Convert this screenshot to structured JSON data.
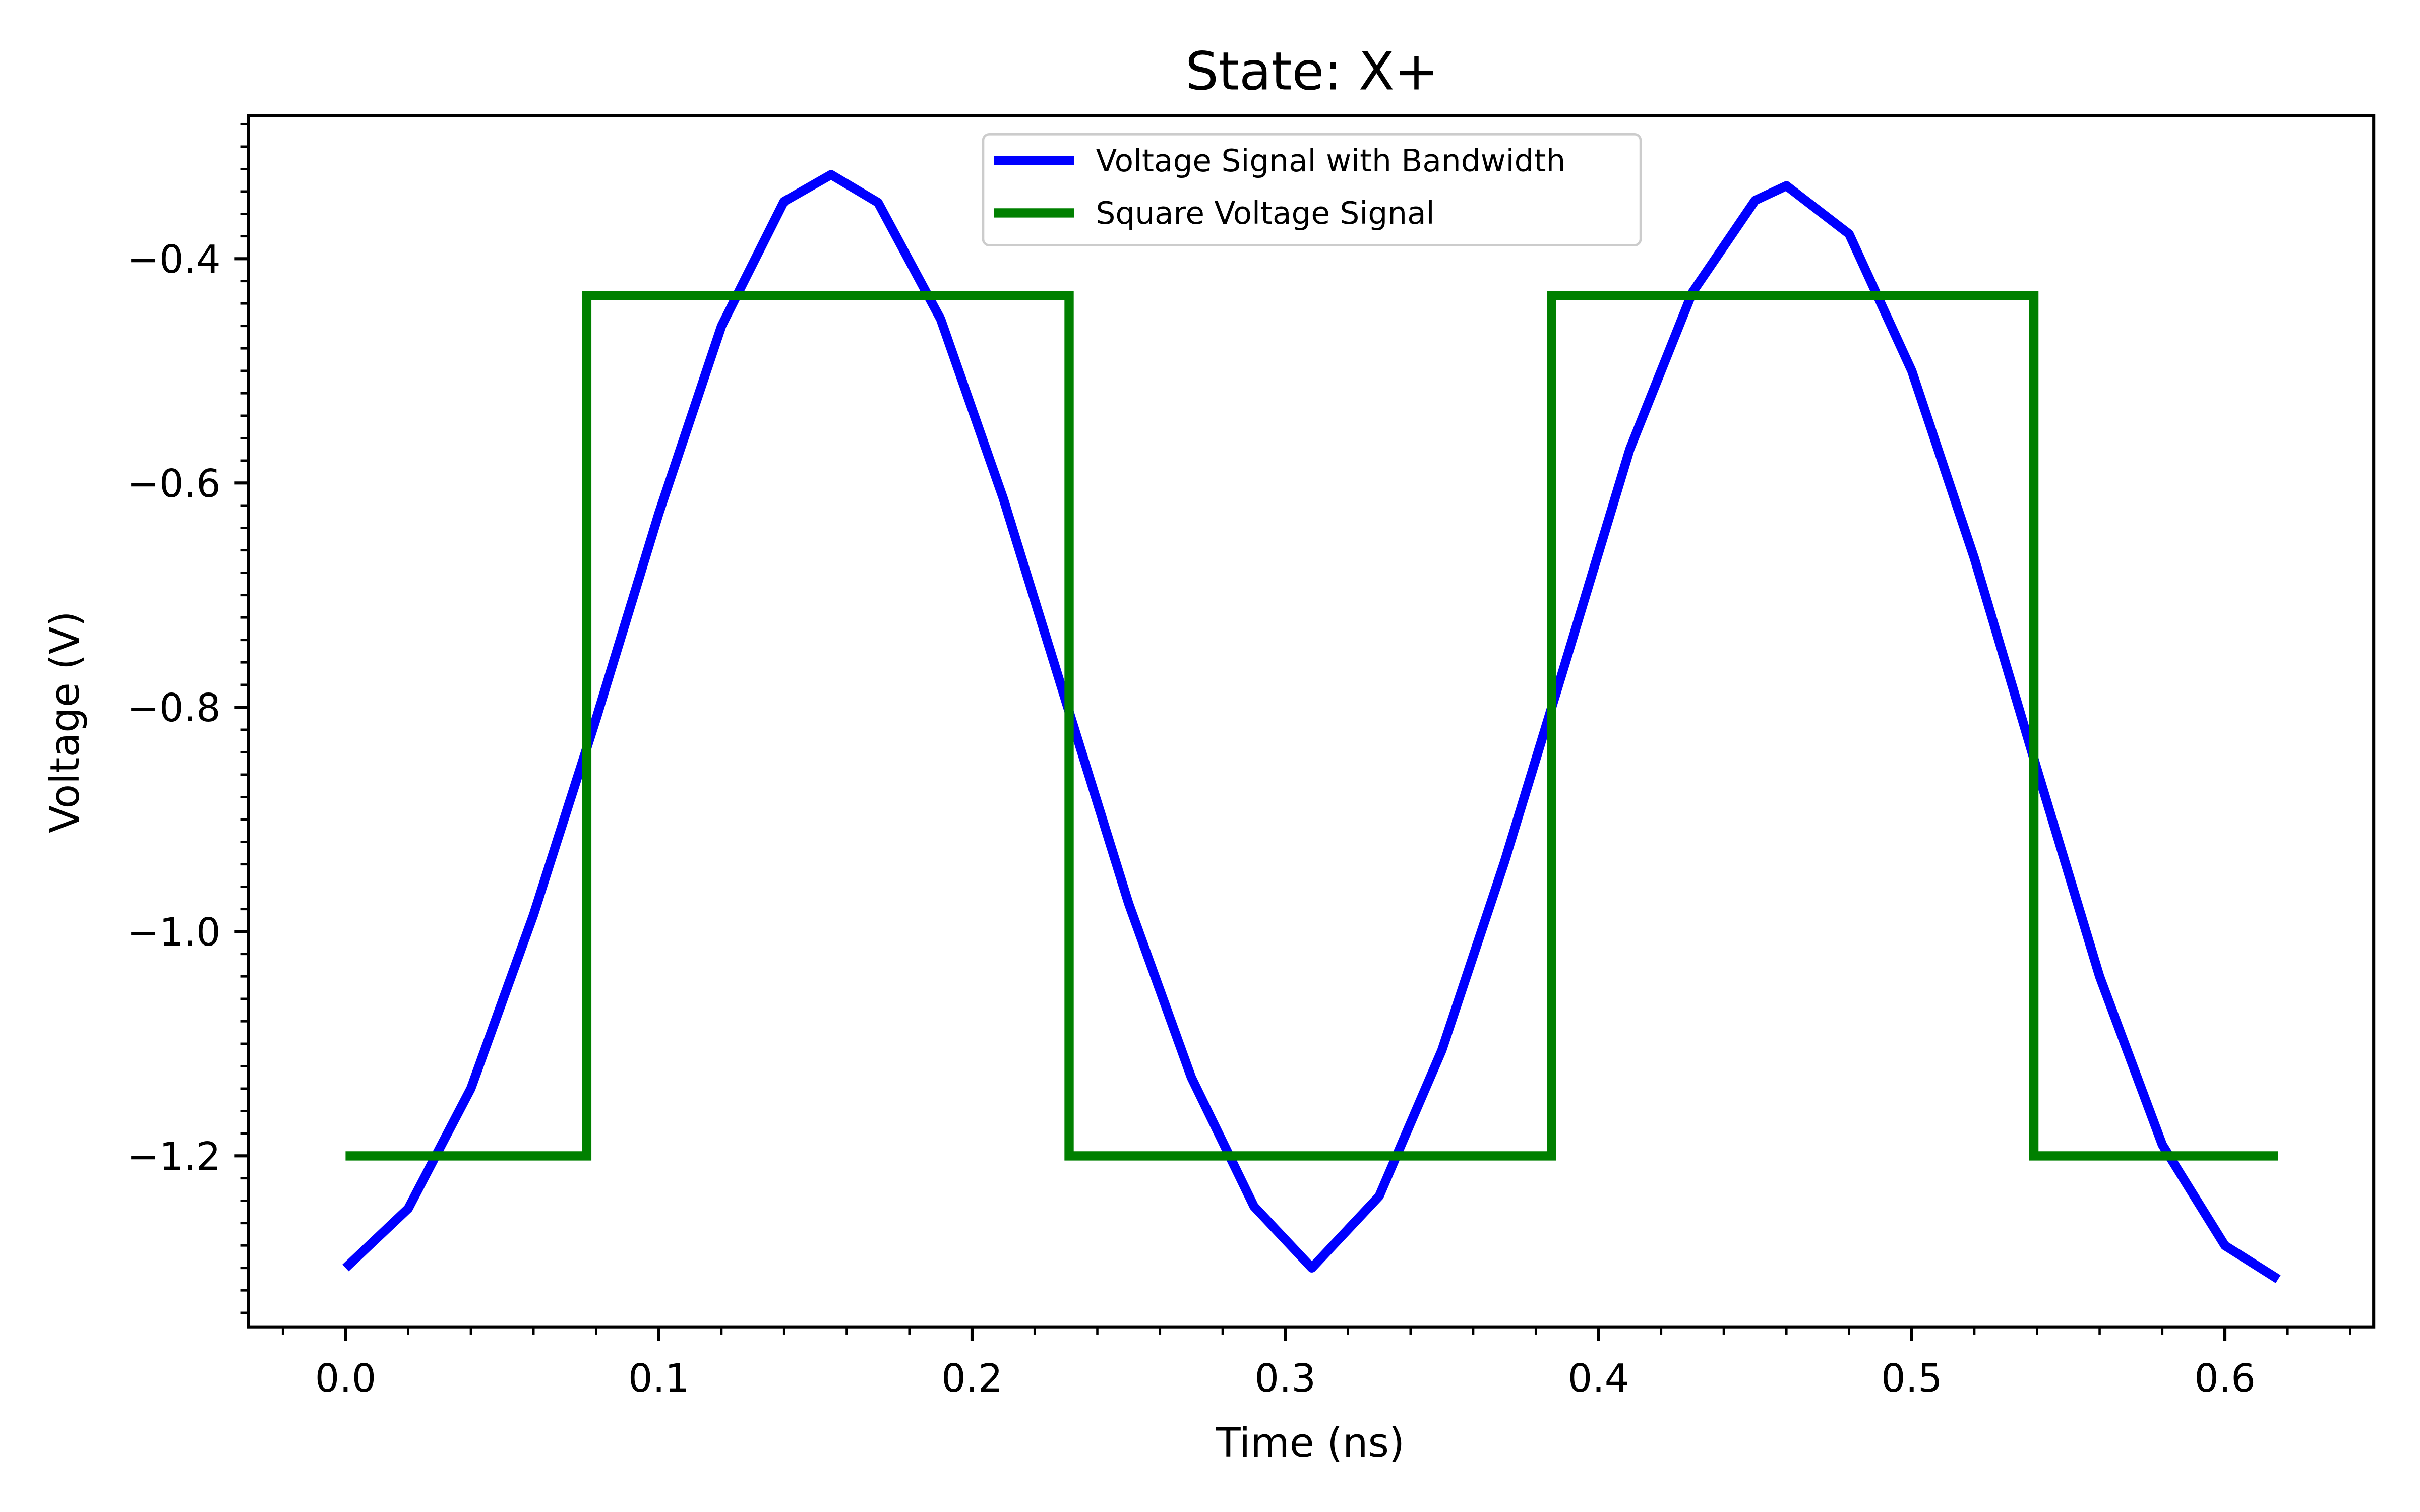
{
  "chart_data": {
    "type": "line",
    "title": "State: X+",
    "xlabel": "Time (ns)",
    "ylabel": "Voltage (V)",
    "xlim": [
      -0.031,
      0.6475
    ],
    "ylim": [
      -1.3525,
      -0.2725
    ],
    "xticks": [
      0.0,
      0.1,
      0.2,
      0.3,
      0.4,
      0.5,
      0.6
    ],
    "xtick_labels": [
      "0.0",
      "0.1",
      "0.2",
      "0.3",
      "0.4",
      "0.5",
      "0.6"
    ],
    "yticks": [
      -1.2,
      -1.0,
      -0.8,
      -0.6,
      -0.4
    ],
    "ytick_labels": [
      "−1.2",
      "−1.0",
      "−0.8",
      "−0.6",
      "−0.4"
    ],
    "grid": false,
    "legend_position": "top-center",
    "series": [
      {
        "name": "Voltage Signal with Bandwidth",
        "color": "#0000ff",
        "x": [
          0.0,
          0.02,
          0.04,
          0.06,
          0.08,
          0.1,
          0.12,
          0.14,
          0.155,
          0.17,
          0.19,
          0.21,
          0.23,
          0.25,
          0.27,
          0.29,
          0.3085,
          0.33,
          0.35,
          0.37,
          0.39,
          0.41,
          0.43,
          0.45,
          0.46,
          0.48,
          0.5,
          0.52,
          0.54,
          0.56,
          0.58,
          0.6,
          0.617
        ],
        "y": [
          -1.3,
          -1.247,
          -1.14,
          -0.985,
          -0.81,
          -0.627,
          -0.46,
          -0.349,
          -0.325,
          -0.35,
          -0.454,
          -0.614,
          -0.795,
          -0.975,
          -1.13,
          -1.245,
          -1.3,
          -1.236,
          -1.106,
          -0.938,
          -0.755,
          -0.57,
          -0.43,
          -0.348,
          -0.335,
          -0.378,
          -0.5,
          -0.667,
          -0.855,
          -1.04,
          -1.19,
          -1.28,
          -1.31
        ]
      },
      {
        "name": "Square Voltage Signal",
        "color": "#008000",
        "x": [
          0.0,
          0.077,
          0.077,
          0.231,
          0.231,
          0.385,
          0.385,
          0.539,
          0.539,
          0.617
        ],
        "y": [
          -1.2,
          -1.2,
          -0.433,
          -0.433,
          -1.2,
          -1.2,
          -0.433,
          -0.433,
          -1.2,
          -1.2
        ]
      }
    ]
  }
}
